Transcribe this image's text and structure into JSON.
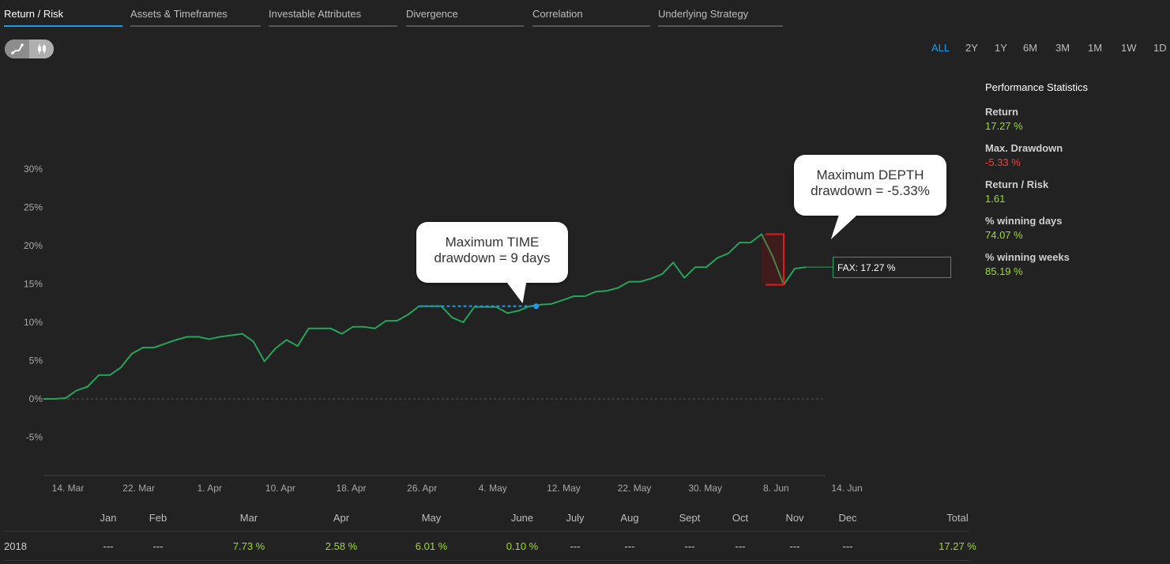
{
  "tabs": [
    {
      "label": "Return / Risk",
      "active": true
    },
    {
      "label": "Assets & Timeframes",
      "active": false
    },
    {
      "label": "Investable Attributes",
      "active": false
    },
    {
      "label": "Divergence",
      "active": false
    },
    {
      "label": "Correlation",
      "active": false
    },
    {
      "label": "Underlying Strategy",
      "active": false
    }
  ],
  "view_toggle": {
    "line_icon": "line-chart-icon",
    "candle_icon": "candlestick-icon",
    "selected": "line"
  },
  "ranges": [
    "ALL",
    "2Y",
    "1Y",
    "6M",
    "3M",
    "1M",
    "1W",
    "1D"
  ],
  "active_range": "ALL",
  "colors": {
    "accent": "#1e9be9",
    "line": "#27a35a",
    "positive": "#9bdc28",
    "negative": "#ff3b3b",
    "background": "#222222"
  },
  "chart_data": {
    "type": "line",
    "x_ticks": [
      "14. Mar",
      "22. Mar",
      "1. Apr",
      "10. Apr",
      "18. Apr",
      "26. Apr",
      "4. May",
      "12. May",
      "22. May",
      "30. May",
      "8. Jun",
      "14. Jun"
    ],
    "y_ticks": [
      "30%",
      "25%",
      "20%",
      "15%",
      "10%",
      "5%",
      "0%",
      "-5%"
    ],
    "ylim": [
      -10,
      30
    ],
    "grid": false,
    "series": [
      {
        "name": "FAX",
        "values": [
          0,
          0,
          0.1,
          1.1,
          1.6,
          3.1,
          3.1,
          4.1,
          5.9,
          6.7,
          6.7,
          7.2,
          7.7,
          8.1,
          8.1,
          7.8,
          8.1,
          8.3,
          8.5,
          7.5,
          4.9,
          6.6,
          7.7,
          6.9,
          9.2,
          9.2,
          9.2,
          8.5,
          9.4,
          9.4,
          9.2,
          10.2,
          10.2,
          11.0,
          12.1,
          12.1,
          12.1,
          10.6,
          10.0,
          12.0,
          12.0,
          12.0,
          11.2,
          11.5,
          12.1,
          12.3,
          12.4,
          12.9,
          13.4,
          13.4,
          14.0,
          14.1,
          14.5,
          15.3,
          15.3,
          15.7,
          16.3,
          17.8,
          15.8,
          17.2,
          17.2,
          18.4,
          19.0,
          20.4,
          20.4,
          21.5,
          18.6,
          14.9,
          17.0,
          17.2
        ]
      }
    ],
    "end_label": "FAX: 17.27 %",
    "annotations": [
      {
        "text_line1": "Maximum TIME",
        "text_line2": "drawdown = 9 days"
      },
      {
        "text_line1": "Maximum DEPTH",
        "text_line2": "drawdown = -5.33%"
      }
    ]
  },
  "stats": {
    "title": "Performance Statistics",
    "items": [
      {
        "label": "Return",
        "value": "17.27 %",
        "color": "#9bdc28"
      },
      {
        "label": "Max. Drawdown",
        "value": "-5.33 %",
        "color": "#ff3b3b"
      },
      {
        "label": "Return / Risk",
        "value": "1.61",
        "color": "#9bdc28"
      },
      {
        "label": "% winning days",
        "value": "74.07 %",
        "color": "#9bdc28"
      },
      {
        "label": "% winning weeks",
        "value": "85.19 %",
        "color": "#9bdc28"
      }
    ]
  },
  "monthly": {
    "headers": [
      "Jan",
      "Feb",
      "Mar",
      "Apr",
      "May",
      "June",
      "July",
      "Aug",
      "Sept",
      "Oct",
      "Nov",
      "Dec",
      "Total"
    ],
    "rows": [
      {
        "year": "2018",
        "values": [
          "---",
          "---",
          "7.73 %",
          "2.58 %",
          "6.01 %",
          "0.10 %",
          "---",
          "---",
          "---",
          "---",
          "---",
          "---",
          "17.27 %"
        ]
      }
    ]
  }
}
